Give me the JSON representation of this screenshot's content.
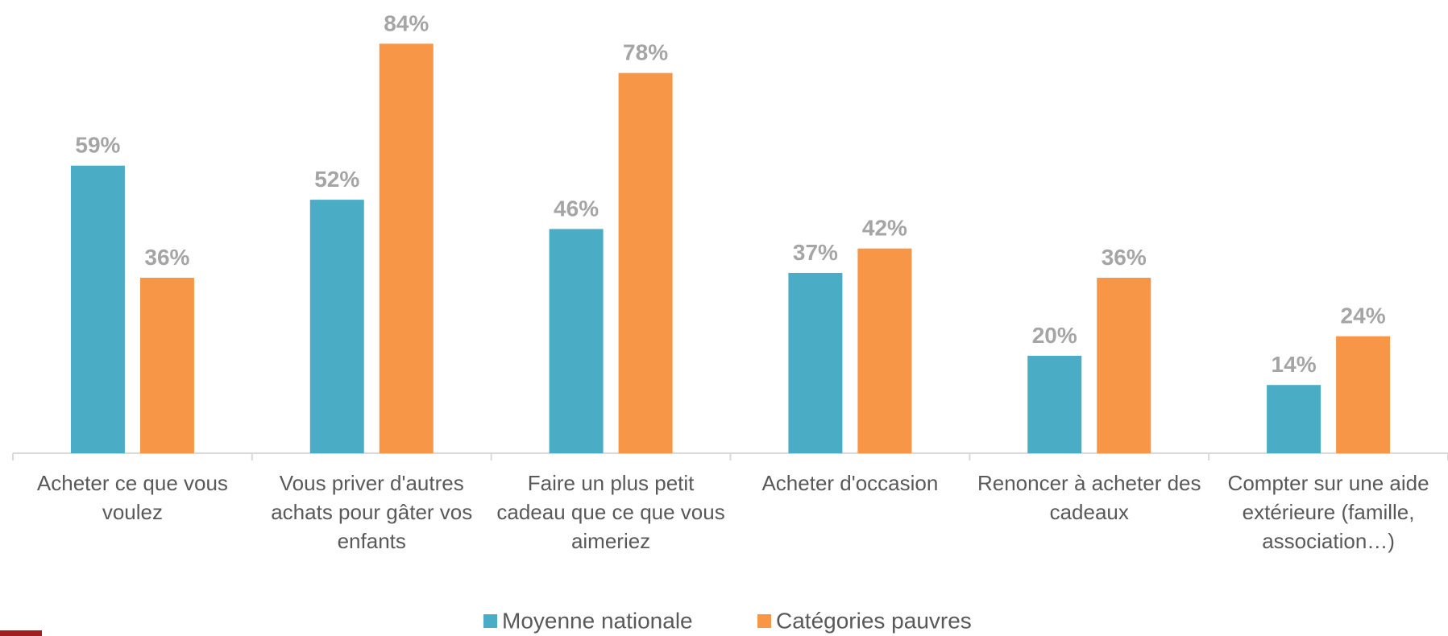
{
  "chart_data": {
    "type": "bar",
    "categories": [
      "Acheter ce que vous voulez",
      "Vous priver d'autres achats pour gâter vos enfants",
      "Faire un plus petit cadeau que ce que vous aimeriez",
      "Acheter d'occasion",
      "Renoncer à acheter des cadeaux",
      "Compter sur une aide extérieure (famille, association…)"
    ],
    "series": [
      {
        "name": "Moyenne nationale",
        "color": "#4bacc6",
        "values": [
          59,
          52,
          46,
          37,
          20,
          14
        ],
        "value_labels": [
          "59%",
          "52%",
          "46%",
          "37%",
          "20%",
          "14%"
        ]
      },
      {
        "name": "Catégories pauvres",
        "color": "#f79646",
        "values": [
          36,
          84,
          78,
          42,
          36,
          24
        ],
        "value_labels": [
          "36%",
          "84%",
          "78%",
          "42%",
          "36%",
          "24%"
        ]
      }
    ],
    "ylim": [
      0,
      90
    ],
    "legend": "bottom"
  }
}
